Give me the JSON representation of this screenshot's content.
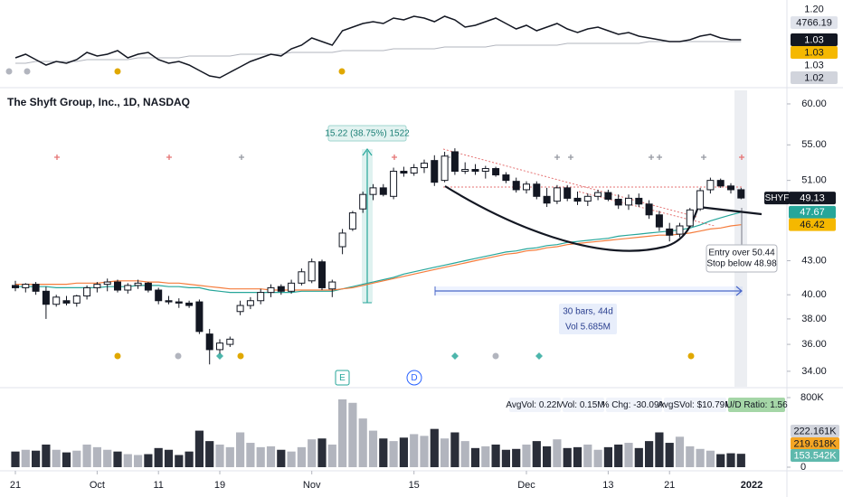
{
  "chart_data": {
    "type": "candlestick",
    "title": "The Shyft Group, Inc., 1D, NASDAQ",
    "ticker": "SHYF",
    "categories": [
      "21",
      null,
      null,
      null,
      null,
      null,
      null,
      null,
      "Oct",
      null,
      null,
      null,
      null,
      null,
      "11",
      null,
      null,
      null,
      null,
      null,
      "19",
      null,
      null,
      null,
      null,
      null,
      null,
      null,
      null,
      "Nov",
      null,
      null,
      null,
      null,
      null,
      null,
      null,
      null,
      null,
      "15",
      null,
      null,
      null,
      null,
      null,
      null,
      null,
      null,
      null,
      null,
      "Dec",
      null,
      null,
      null,
      null,
      null,
      null,
      null,
      "13",
      null,
      null,
      null,
      null,
      null,
      "21",
      null,
      null,
      null,
      null,
      null,
      null,
      null
    ],
    "next_period_label": "2022",
    "ohlc": [
      [
        40.8,
        41.2,
        40.3,
        40.6
      ],
      [
        40.6,
        41.0,
        40.2,
        40.9
      ],
      [
        40.9,
        41.1,
        40.0,
        40.3
      ],
      [
        40.3,
        40.7,
        38.0,
        39.2
      ],
      [
        39.2,
        40.0,
        39.0,
        39.8
      ],
      [
        39.5,
        39.9,
        39.1,
        39.3
      ],
      [
        39.3,
        40.0,
        39.0,
        39.9
      ],
      [
        39.9,
        40.8,
        39.6,
        40.6
      ],
      [
        40.6,
        41.1,
        40.2,
        40.9
      ],
      [
        40.9,
        41.4,
        40.3,
        41.1
      ],
      [
        41.1,
        41.3,
        40.2,
        40.4
      ],
      [
        40.4,
        41.0,
        40.1,
        40.8
      ],
      [
        40.8,
        41.3,
        40.5,
        41.0
      ],
      [
        41.0,
        41.1,
        40.2,
        40.4
      ],
      [
        40.4,
        40.6,
        39.2,
        39.5
      ],
      [
        39.5,
        39.9,
        39.2,
        39.4
      ],
      [
        39.4,
        39.7,
        38.9,
        39.3
      ],
      [
        39.3,
        39.5,
        38.9,
        39.1
      ],
      [
        39.4,
        39.6,
        36.8,
        37.0
      ],
      [
        36.8,
        37.2,
        34.5,
        35.6
      ],
      [
        35.6,
        36.4,
        35.3,
        36.1
      ],
      [
        36.0,
        36.6,
        35.8,
        36.4
      ],
      [
        38.6,
        39.5,
        38.3,
        39.1
      ],
      [
        39.1,
        39.8,
        38.8,
        39.5
      ],
      [
        39.5,
        40.5,
        39.2,
        40.2
      ],
      [
        40.2,
        40.9,
        39.8,
        40.6
      ],
      [
        40.7,
        40.9,
        40.0,
        40.3
      ],
      [
        40.3,
        41.3,
        40.1,
        41.0
      ],
      [
        41.0,
        42.3,
        40.8,
        42.0
      ],
      [
        41.2,
        43.2,
        41.0,
        42.9
      ],
      [
        42.9,
        43.1,
        40.4,
        40.6
      ],
      [
        40.5,
        41.3,
        39.8,
        41.1
      ],
      [
        44.3,
        46.0,
        43.6,
        45.6
      ],
      [
        46.0,
        47.8,
        45.8,
        47.6
      ],
      [
        48.0,
        49.8,
        47.6,
        49.5
      ],
      [
        49.5,
        50.6,
        48.9,
        50.2
      ],
      [
        50.2,
        50.6,
        49.3,
        49.5
      ],
      [
        49.3,
        52.4,
        49.0,
        52.0
      ],
      [
        52.0,
        52.5,
        51.4,
        51.8
      ],
      [
        51.8,
        52.8,
        51.5,
        52.4
      ],
      [
        52.4,
        53.3,
        51.8,
        52.9
      ],
      [
        53.2,
        53.8,
        50.4,
        50.8
      ],
      [
        51.0,
        54.2,
        50.8,
        53.7
      ],
      [
        54.2,
        54.6,
        51.6,
        52.0
      ],
      [
        52.0,
        53.0,
        51.7,
        52.2
      ],
      [
        52.2,
        52.8,
        51.6,
        52.0
      ],
      [
        52.0,
        52.6,
        51.2,
        52.3
      ],
      [
        52.3,
        52.5,
        51.4,
        51.6
      ],
      [
        51.6,
        51.9,
        50.7,
        51.0
      ],
      [
        50.9,
        51.3,
        49.7,
        50.0
      ],
      [
        50.0,
        50.9,
        49.6,
        50.6
      ],
      [
        50.6,
        50.9,
        49.0,
        49.3
      ],
      [
        49.3,
        50.2,
        48.2,
        48.6
      ],
      [
        48.8,
        50.5,
        48.5,
        50.2
      ],
      [
        50.2,
        50.5,
        48.8,
        49.1
      ],
      [
        49.1,
        49.8,
        48.4,
        48.8
      ],
      [
        48.8,
        49.6,
        48.3,
        49.3
      ],
      [
        49.3,
        50.0,
        48.9,
        49.7
      ],
      [
        49.7,
        50.0,
        48.8,
        49.0
      ],
      [
        49.0,
        49.5,
        48.0,
        48.4
      ],
      [
        48.4,
        49.5,
        47.9,
        49.1
      ],
      [
        49.1,
        49.6,
        48.2,
        48.5
      ],
      [
        48.5,
        48.9,
        47.0,
        47.4
      ],
      [
        47.4,
        47.8,
        45.8,
        46.2
      ],
      [
        46.0,
        46.6,
        44.8,
        45.4
      ],
      [
        45.5,
        46.6,
        45.2,
        46.3
      ],
      [
        46.3,
        48.1,
        46.1,
        47.9
      ],
      [
        48.0,
        50.2,
        47.8,
        49.9
      ],
      [
        50.0,
        51.3,
        49.6,
        51.0
      ],
      [
        51.0,
        51.2,
        50.2,
        50.4
      ],
      [
        50.4,
        50.7,
        49.6,
        50.0
      ],
      [
        50.0,
        50.2,
        49.0,
        49.13
      ]
    ],
    "up_color": "#ffffff",
    "down_color": "#131722",
    "log_scale": true,
    "ylim": [
      32.9,
      61.75
    ],
    "yticks": [
      {
        "value": 60,
        "label": "60.00"
      },
      {
        "value": 55,
        "label": "55.00"
      },
      {
        "value": 51,
        "label": "51.00"
      },
      {
        "value": 43,
        "label": "43.00"
      },
      {
        "value": 40,
        "label": "40.00"
      },
      {
        "value": 38,
        "label": "38.00"
      },
      {
        "value": 36,
        "label": "36.00"
      },
      {
        "value": 34,
        "label": "34.00"
      }
    ],
    "price_markers": [
      {
        "value": 49.13,
        "label": "49.13",
        "color": "#131722"
      },
      {
        "value": 47.67,
        "label": "47.67",
        "color": "#26a69a"
      },
      {
        "value": 46.42,
        "label": "46.42",
        "color": "#f5b800"
      }
    ],
    "lines": [
      {
        "color": "#26a69a",
        "values": [
          40.7,
          40.7,
          40.7,
          40.7,
          40.6,
          40.6,
          40.6,
          40.6,
          40.6,
          40.7,
          40.7,
          40.7,
          40.8,
          40.8,
          40.8,
          40.7,
          40.7,
          40.6,
          40.6,
          40.4,
          40.3,
          40.2,
          40.2,
          40.2,
          40.2,
          40.2,
          40.2,
          40.2,
          40.3,
          40.3,
          40.3,
          40.3,
          40.5,
          40.7,
          40.9,
          41.1,
          41.3,
          41.5,
          41.8,
          42.0,
          42.2,
          42.4,
          42.6,
          42.8,
          43.0,
          43.2,
          43.4,
          43.6,
          43.8,
          43.9,
          44.1,
          44.2,
          44.4,
          44.5,
          44.7,
          44.8,
          44.9,
          45.0,
          45.1,
          45.3,
          45.4,
          45.5,
          45.6,
          45.7,
          45.8,
          45.9,
          46.1,
          46.4,
          46.8,
          47.1,
          47.4,
          47.67
        ]
      },
      {
        "color": "#f57c3c",
        "values": [
          40.9,
          40.9,
          40.9,
          40.9,
          40.9,
          40.9,
          41.0,
          41.0,
          41.0,
          41.1,
          41.2,
          41.2,
          41.2,
          41.1,
          41.1,
          41.0,
          41.0,
          40.9,
          40.8,
          40.7,
          40.6,
          40.5,
          40.5,
          40.5,
          40.5,
          40.4,
          40.4,
          40.4,
          40.4,
          40.4,
          40.4,
          40.4,
          40.5,
          40.6,
          40.8,
          41.0,
          41.2,
          41.4,
          41.6,
          41.8,
          42.0,
          42.2,
          42.4,
          42.6,
          42.8,
          43.0,
          43.2,
          43.4,
          43.6,
          43.7,
          43.9,
          44.0,
          44.2,
          44.3,
          44.5,
          44.6,
          44.7,
          44.8,
          44.9,
          45.0,
          45.1,
          45.2,
          45.3,
          45.4,
          45.4,
          45.5,
          45.6,
          45.8,
          46.0,
          46.1,
          46.3,
          46.42
        ]
      }
    ],
    "measure": {
      "price_range": "15.22 (38.75%) 1522",
      "bars_label": "30 bars, 44d",
      "volume_label": "Vol 5.685M"
    },
    "note": [
      "Entry over 50.44",
      "Stop below 48.98"
    ],
    "events": [
      "E",
      "D"
    ],
    "volume": {
      "values": [
        180,
        200,
        190,
        260,
        200,
        170,
        190,
        260,
        230,
        200,
        180,
        150,
        140,
        150,
        220,
        200,
        140,
        180,
        420,
        300,
        260,
        230,
        400,
        280,
        230,
        240,
        200,
        180,
        230,
        320,
        330,
        260,
        780,
        740,
        560,
        420,
        330,
        300,
        340,
        380,
        360,
        440,
        330,
        400,
        300,
        220,
        240,
        260,
        200,
        210,
        260,
        300,
        240,
        320,
        220,
        230,
        260,
        200,
        230,
        260,
        280,
        220,
        300,
        400,
        280,
        350,
        240,
        210,
        190,
        150,
        160,
        154
      ],
      "up_color": "#b2b5be",
      "down_color": "#2a2e39",
      "ylim": [
        0,
        904
      ],
      "yticks": [
        {
          "value": 800,
          "label": "800K"
        },
        0
      ],
      "markers": [
        {
          "value": 222.161,
          "label": "222.161K",
          "color": "#d1d4dc"
        },
        {
          "value": 219.618,
          "label": "219.618K",
          "color": "#f5a623"
        },
        {
          "value": 153.542,
          "label": "153.542K",
          "color": "#5fb9ad"
        }
      ],
      "stats": [
        "AvgVol: 0.22M",
        "Vol: 0.15M",
        "% Chg: -30.09%",
        "AvgSVol: $10.79M",
        "U/D Ratio: 1.56"
      ]
    },
    "indicator": {
      "ylim": [
        0.775,
        1.25
      ],
      "lines": [
        {
          "color": "#b2b5be",
          "values": [
            0.9,
            0.9,
            0.91,
            0.91,
            0.91,
            0.91,
            0.91,
            0.92,
            0.92,
            0.92,
            0.92,
            0.92,
            0.93,
            0.93,
            0.93,
            0.93,
            0.93,
            0.94,
            0.94,
            0.94,
            0.94,
            0.94,
            0.95,
            0.95,
            0.95,
            0.95,
            0.95,
            0.96,
            0.96,
            0.96,
            0.96,
            0.96,
            0.97,
            0.97,
            0.97,
            0.97,
            0.97,
            0.98,
            0.98,
            0.98,
            0.98,
            0.98,
            0.99,
            0.99,
            0.99,
            0.99,
            0.99,
            1.0,
            1.0,
            1.0,
            1.0,
            1.0,
            1.0,
            1.0,
            1.01,
            1.01,
            1.01,
            1.01,
            1.01,
            1.01,
            1.01,
            1.01,
            1.02,
            1.02,
            1.02,
            1.02,
            1.02,
            1.02,
            1.02,
            1.02,
            1.02,
            1.02
          ]
        },
        {
          "color": "#131722",
          "values": [
            0.93,
            0.95,
            0.92,
            0.89,
            0.91,
            0.9,
            0.92,
            0.96,
            0.94,
            0.95,
            0.97,
            0.93,
            0.95,
            0.96,
            0.92,
            0.9,
            0.91,
            0.89,
            0.86,
            0.83,
            0.82,
            0.85,
            0.88,
            0.91,
            0.93,
            0.95,
            0.94,
            0.98,
            1.0,
            1.04,
            1.02,
            1.0,
            1.08,
            1.1,
            1.12,
            1.13,
            1.12,
            1.15,
            1.14,
            1.16,
            1.15,
            1.13,
            1.16,
            1.14,
            1.1,
            1.11,
            1.13,
            1.15,
            1.12,
            1.09,
            1.11,
            1.08,
            1.1,
            1.12,
            1.09,
            1.07,
            1.09,
            1.1,
            1.08,
            1.06,
            1.07,
            1.05,
            1.04,
            1.03,
            1.02,
            1.02,
            1.03,
            1.05,
            1.06,
            1.04,
            1.03,
            1.03
          ]
        }
      ],
      "labels": [
        {
          "value": 1.2,
          "label": "1.20"
        },
        {
          "value": 4766.19,
          "label": "4766.19"
        },
        {
          "value": 1.03,
          "label": "1.03"
        },
        {
          "value": 1.03,
          "label": "1.03"
        },
        {
          "value": 1.03,
          "label": "1.03"
        },
        {
          "value": 1.02,
          "label": "1.02"
        }
      ]
    }
  }
}
